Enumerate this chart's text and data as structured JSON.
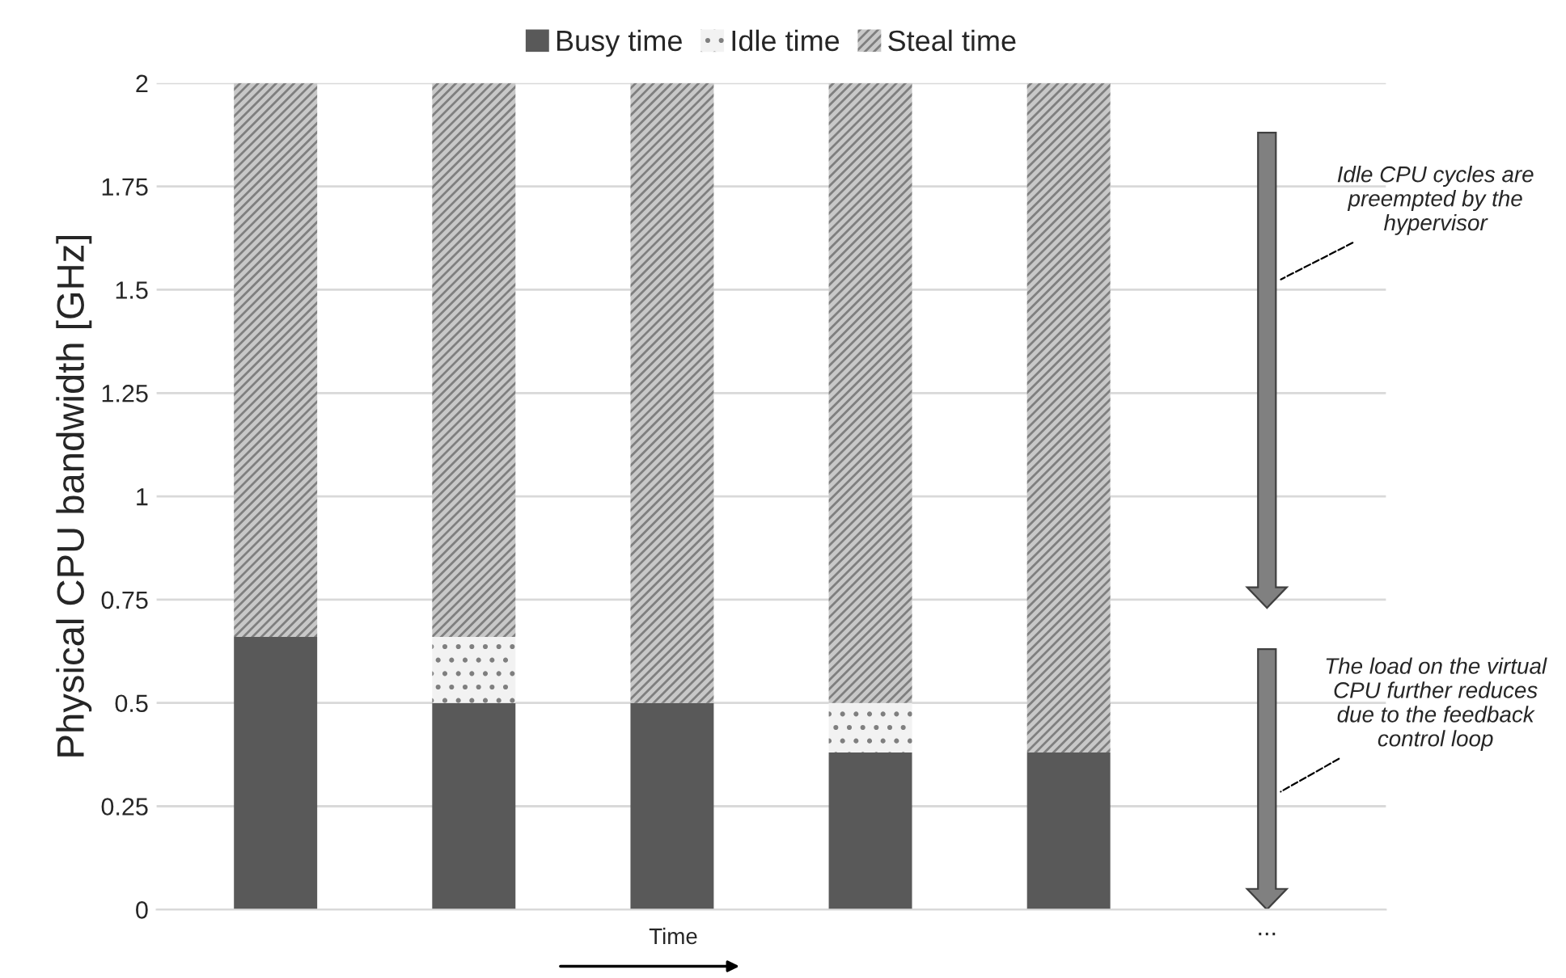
{
  "chart_data": {
    "type": "bar",
    "stacked": true,
    "ylabel": "Physical CPU bandwidth [GHz]",
    "xlabel": "Time",
    "categories": [
      null,
      null,
      null,
      null,
      null,
      "..."
    ],
    "series": [
      {
        "name": "Busy time",
        "color": "#595959",
        "values": [
          0.66,
          0.5,
          0.5,
          0.38,
          0.38,
          null
        ]
      },
      {
        "name": "Idle time",
        "color": "#f2f2f2",
        "values": [
          0,
          0.16,
          0,
          0.12,
          0,
          null
        ]
      },
      {
        "name": "Steal time",
        "color": "#c8c8c8",
        "values": [
          1.34,
          1.34,
          1.5,
          1.5,
          1.62,
          null
        ]
      }
    ],
    "ylim": [
      0,
      2
    ],
    "yticks": [
      0,
      0.25,
      0.5,
      0.75,
      1,
      1.25,
      1.5,
      1.75,
      2
    ],
    "grid": "y",
    "legend": "top",
    "annotations": [
      "Idle CPU cycles are preempted by the hypervisor",
      "The load on the virtual CPU further reduces due to the feedback control loop"
    ]
  }
}
